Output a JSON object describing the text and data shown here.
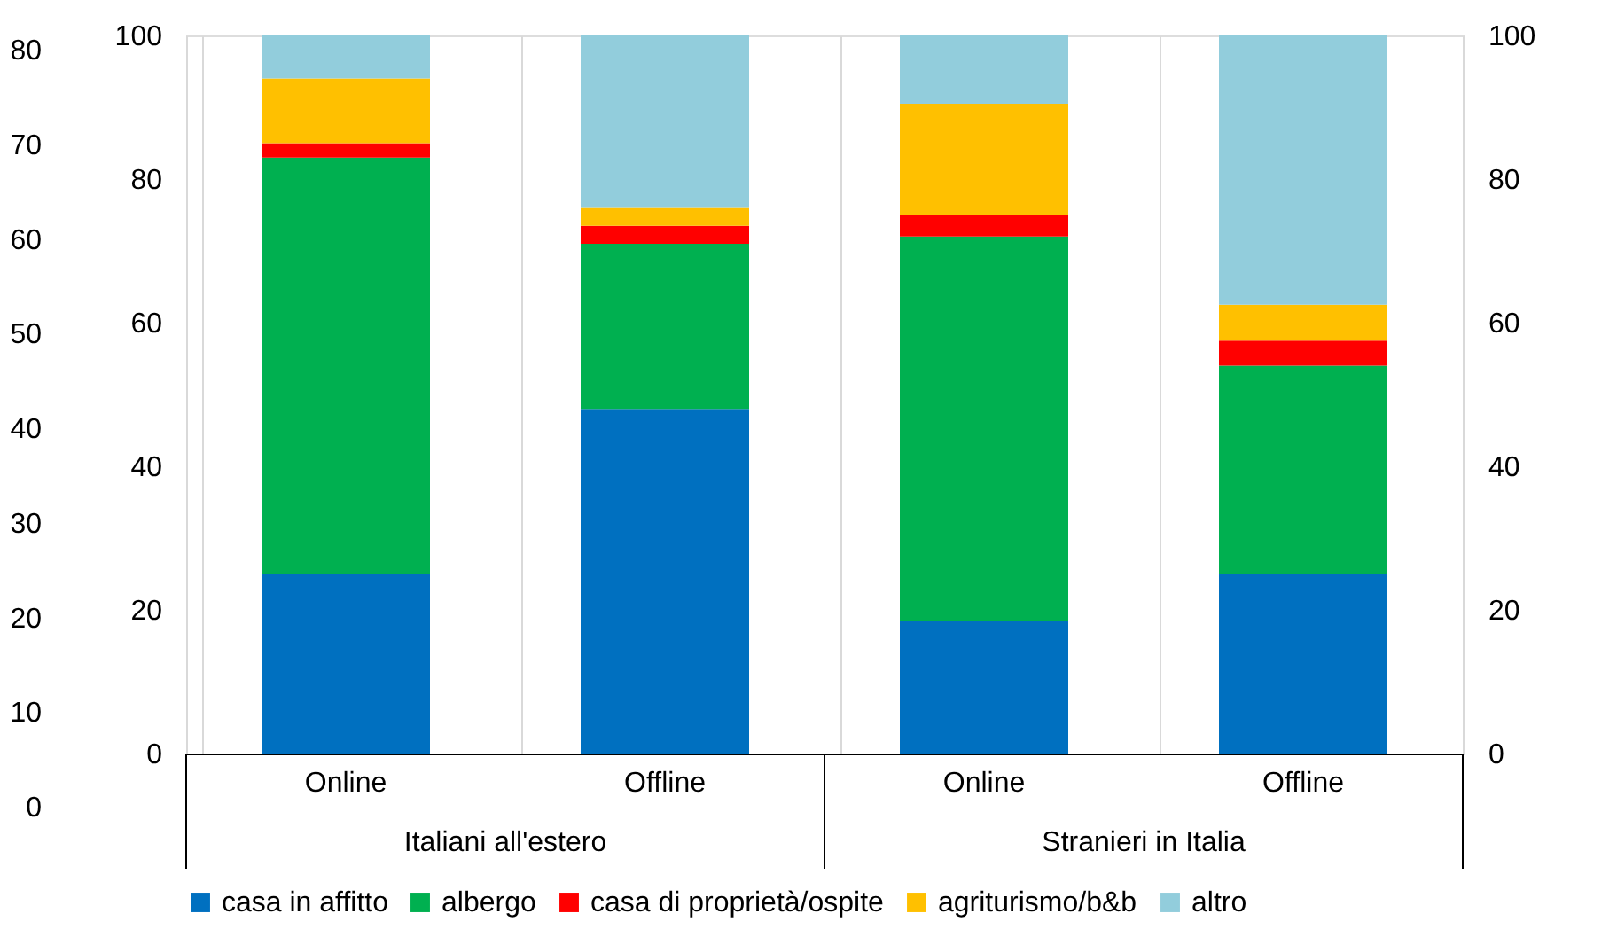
{
  "chart_data": {
    "type": "bar",
    "stacked": true,
    "categories": [
      "Online",
      "Offline",
      "Online",
      "Offline"
    ],
    "annotations": [
      "Italiani all'estero",
      "Stranieri in Italia"
    ],
    "series": [
      {
        "name": "casa in affitto",
        "color": "#0070c0",
        "values": [
          25,
          48,
          18.5,
          25
        ]
      },
      {
        "name": "albergo",
        "color": "#00b050",
        "values": [
          58,
          23,
          53.5,
          29
        ]
      },
      {
        "name": "casa di proprietà/ospite",
        "color": "#ff0000",
        "values": [
          2,
          2.5,
          3,
          3.5
        ]
      },
      {
        "name": "agriturismo/b&b",
        "color": "#ffc000",
        "values": [
          9,
          2.5,
          15.5,
          5
        ]
      },
      {
        "name": "altro",
        "color": "#92cddc",
        "values": [
          6,
          24,
          9.5,
          37.5
        ]
      }
    ],
    "ylim": [
      0,
      100
    ],
    "yticks": [
      0,
      20,
      40,
      60,
      80,
      100
    ],
    "y2lim": [
      0,
      100
    ],
    "y2ticks": [
      0,
      20,
      40,
      60,
      80,
      100
    ],
    "y3lim": [
      0,
      80
    ],
    "y3ticks": [
      0,
      10,
      20,
      30,
      40,
      50,
      60,
      70,
      80
    ],
    "grid": "x",
    "legend": "bottom"
  }
}
